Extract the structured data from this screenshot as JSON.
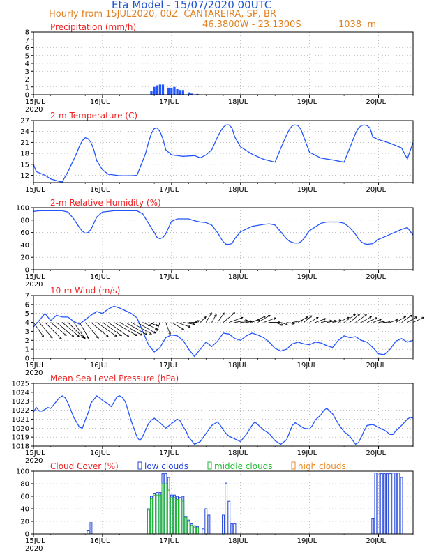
{
  "header": {
    "title": "Eta Model - 15/07/2020 00UTC",
    "subtitle": "Hourly from 15JUL2020, 00Z  CANTAREIRA, SP, BR",
    "coords": "46.3800W - 23.1300S",
    "elevation": "1038  m"
  },
  "colors": {
    "title": "#2255cc",
    "subtitle": "#e08020",
    "panel_title": "#ee2222",
    "series": "#2255ff",
    "low": "#2244dd",
    "middle": "#22bb33",
    "high": "#ee8822",
    "wind": "#000000",
    "axis": "#000000",
    "grid": "#999999"
  },
  "chart_data": [
    {
      "type": "bar",
      "title": "Precipitation (mm/h)",
      "x_unit": "hour since 15JUL2020 00Z",
      "xlim": [
        0,
        132
      ],
      "xticks": [
        0,
        24,
        48,
        72,
        96,
        120
      ],
      "xtick_labels": [
        "15JUL",
        "16JUL",
        "17JUL",
        "18JUL",
        "19JUL",
        "20JUL"
      ],
      "year_label": "2020",
      "ylim": [
        0,
        8
      ],
      "yticks": [
        0,
        1,
        2,
        3,
        4,
        5,
        6,
        7,
        8
      ],
      "grid": true,
      "x": [
        41,
        42,
        43,
        44,
        45,
        47,
        48,
        49,
        50,
        51,
        52,
        54,
        55,
        57
      ],
      "values": [
        0.5,
        1.0,
        1.2,
        1.3,
        1.3,
        0.9,
        0.9,
        1.0,
        0.8,
        0.6,
        0.6,
        0.3,
        0.15,
        0.1
      ]
    },
    {
      "type": "line",
      "title": "2-m Temperature (C)",
      "xlim": [
        0,
        132
      ],
      "xticks": [
        0,
        24,
        48,
        72,
        96,
        120
      ],
      "xtick_labels": [
        "15JUL",
        "16JUL",
        "17JUL",
        "18JUL",
        "19JUL",
        "20JUL"
      ],
      "year_label": "",
      "ylim": [
        10,
        27
      ],
      "yticks": [
        12,
        15,
        18,
        21,
        24,
        27
      ],
      "grid": true,
      "x": [
        0,
        1,
        4,
        6,
        9,
        10,
        12,
        15,
        16,
        17,
        18,
        19,
        20,
        21,
        22,
        24,
        26,
        30,
        34,
        36,
        38,
        39,
        40,
        41,
        42,
        43,
        44,
        45,
        46,
        48,
        52,
        56,
        58,
        60,
        62,
        64,
        65,
        66,
        67,
        68,
        69,
        70,
        72,
        76,
        80,
        84,
        86,
        88,
        89,
        90,
        91,
        92,
        93,
        94,
        96,
        100,
        104,
        108,
        110,
        112,
        113,
        114,
        115,
        116,
        117,
        118,
        120,
        124,
        128,
        130,
        132
      ],
      "values": [
        15,
        13,
        12,
        11,
        10.3,
        10.2,
        13,
        18,
        20,
        21.5,
        22.3,
        22,
        21,
        19,
        16,
        13.5,
        12.3,
        11.9,
        11.9,
        12,
        16,
        18,
        21,
        23.5,
        24.8,
        25,
        24,
        22,
        19,
        17.6,
        17.2,
        17.4,
        16.8,
        17.6,
        19,
        22.5,
        24,
        25.2,
        25.8,
        25.8,
        25,
        22.5,
        19.8,
        17.8,
        16.4,
        15.6,
        19.4,
        23,
        24.6,
        25.6,
        25.8,
        25.6,
        24.6,
        22.5,
        18.3,
        16.7,
        16.2,
        15.6,
        19.5,
        23.5,
        25,
        25.6,
        25.8,
        25.6,
        25,
        22.5,
        21.8,
        20.8,
        19.5,
        16.5,
        21
      ]
    },
    {
      "type": "line",
      "title": "2-m Relative Humidity (%)",
      "xlim": [
        0,
        132
      ],
      "xticks": [
        0,
        24,
        48,
        72,
        96,
        120
      ],
      "xtick_labels": [
        "15JUL",
        "16JUL",
        "17JUL",
        "18JUL",
        "19JUL",
        "20JUL"
      ],
      "year_label": "2020",
      "ylim": [
        0,
        100
      ],
      "yticks": [
        0,
        20,
        40,
        60,
        80,
        100
      ],
      "grid": true,
      "x": [
        0,
        2,
        4,
        6,
        8,
        10,
        12,
        14,
        16,
        17,
        18,
        19,
        20,
        22,
        24,
        28,
        32,
        34,
        36,
        38,
        40,
        42,
        43,
        44,
        45,
        46,
        48,
        50,
        54,
        56,
        58,
        60,
        62,
        64,
        65,
        66,
        67,
        68,
        69,
        70,
        72,
        76,
        80,
        82,
        84,
        86,
        88,
        89,
        90,
        91,
        92,
        93,
        94,
        96,
        100,
        102,
        104,
        106,
        108,
        110,
        112,
        113,
        114,
        115,
        116,
        118,
        120,
        124,
        128,
        130,
        132
      ],
      "values": [
        94,
        95,
        95,
        95,
        95,
        95,
        93,
        82,
        68,
        62,
        59,
        60,
        65,
        85,
        93,
        95,
        95,
        95,
        95,
        90,
        75,
        60,
        52,
        50,
        52,
        58,
        78,
        82,
        82,
        79,
        77,
        76,
        72,
        60,
        52,
        45,
        41,
        41,
        42,
        50,
        61,
        70,
        73,
        74,
        72,
        61,
        50,
        46,
        44,
        43,
        43,
        45,
        50,
        63,
        75,
        77,
        77,
        77,
        75,
        68,
        57,
        50,
        45,
        42,
        41,
        42,
        49,
        57,
        65,
        68,
        56
      ]
    },
    {
      "type": "line",
      "title": "10-m Wind (m/s)",
      "xlim": [
        0,
        132
      ],
      "xticks": [
        0,
        24,
        48,
        72,
        96,
        120
      ],
      "xtick_labels": [
        "15JUL",
        "16JUL",
        "17JUL",
        "18JUL",
        "19JUL",
        "20JUL"
      ],
      "year_label": "2020",
      "ylim": [
        0,
        7
      ],
      "yticks": [
        0,
        1,
        2,
        3,
        4,
        5,
        6,
        7
      ],
      "grid": true,
      "x": [
        0,
        2,
        4,
        6,
        8,
        10,
        12,
        14,
        16,
        18,
        20,
        22,
        24,
        26,
        28,
        30,
        32,
        34,
        36,
        38,
        40,
        42,
        44,
        46,
        48,
        50,
        52,
        54,
        56,
        58,
        60,
        62,
        64,
        66,
        68,
        70,
        72,
        74,
        76,
        78,
        80,
        82,
        84,
        86,
        88,
        90,
        92,
        94,
        96,
        98,
        100,
        102,
        104,
        106,
        108,
        110,
        112,
        114,
        116,
        118,
        120,
        122,
        124,
        126,
        128,
        130,
        132
      ],
      "values": [
        3.5,
        4.2,
        5.0,
        4.2,
        4.8,
        4.6,
        4.6,
        4.1,
        3.8,
        4.3,
        4.8,
        5.2,
        5.0,
        5.5,
        5.8,
        5.6,
        5.3,
        5.0,
        4.5,
        3.0,
        1.5,
        0.7,
        1.2,
        2.3,
        2.6,
        2.5,
        2.0,
        1.0,
        0.2,
        1.0,
        1.8,
        1.3,
        1.9,
        2.8,
        2.7,
        2.2,
        2.0,
        2.5,
        2.8,
        2.6,
        2.3,
        1.8,
        1.1,
        0.8,
        1.0,
        1.6,
        1.8,
        1.6,
        1.5,
        1.8,
        1.7,
        1.4,
        1.2,
        2.0,
        2.5,
        2.3,
        2.4,
        2.0,
        1.8,
        1.2,
        0.5,
        0.4,
        1.0,
        1.9,
        2.2,
        1.8,
        2.0
      ]
    },
    {
      "type": "line",
      "title": "Mean Sea Level Pressure (hPa)",
      "xlim": [
        0,
        132
      ],
      "xticks": [
        0,
        24,
        48,
        72,
        96,
        120
      ],
      "xtick_labels": [
        "15JUL",
        "16JUL",
        "17JUL",
        "18JUL",
        "19JUL",
        "20JUL"
      ],
      "year_label": "2020",
      "ylim": [
        1018,
        1025
      ],
      "yticks": [
        1018,
        1019,
        1020,
        1021,
        1022,
        1023,
        1024,
        1025
      ],
      "grid": true,
      "x": [
        0,
        1,
        2,
        3,
        4,
        5,
        6,
        7,
        8,
        9,
        10,
        11,
        12,
        14,
        16,
        17,
        18,
        19,
        20,
        22,
        23,
        24,
        26,
        27,
        28,
        29,
        30,
        31,
        32,
        34,
        36,
        37,
        38,
        39,
        40,
        41,
        42,
        44,
        46,
        48,
        50,
        51,
        52,
        53,
        54,
        56,
        58,
        60,
        62,
        64,
        65,
        66,
        67,
        68,
        70,
        72,
        73,
        74,
        76,
        77,
        78,
        80,
        82,
        84,
        86,
        88,
        89,
        90,
        91,
        92,
        94,
        96,
        97,
        98,
        100,
        101,
        102,
        104,
        106,
        108,
        110,
        112,
        113,
        114,
        115,
        116,
        118,
        120,
        121,
        122,
        124,
        125,
        126,
        128,
        130,
        131,
        132
      ],
      "values": [
        1021.8,
        1022.3,
        1021.9,
        1021.9,
        1022.1,
        1022.3,
        1022.2,
        1022.6,
        1023.0,
        1023.4,
        1023.6,
        1023.4,
        1022.8,
        1021.2,
        1020.1,
        1020.0,
        1020.9,
        1021.7,
        1022.8,
        1023.6,
        1023.4,
        1023.1,
        1022.7,
        1022.4,
        1022.9,
        1023.5,
        1023.6,
        1023.4,
        1022.9,
        1020.8,
        1019.0,
        1018.6,
        1019.1,
        1019.8,
        1020.5,
        1020.9,
        1021.1,
        1020.6,
        1020.0,
        1020.5,
        1021.0,
        1020.8,
        1020.2,
        1019.7,
        1019.0,
        1018.2,
        1018.5,
        1019.4,
        1020.3,
        1020.7,
        1020.3,
        1019.8,
        1019.4,
        1019.1,
        1018.8,
        1018.5,
        1018.9,
        1019.3,
        1020.3,
        1020.7,
        1020.4,
        1019.8,
        1019.4,
        1018.6,
        1018.2,
        1018.7,
        1019.5,
        1020.3,
        1020.6,
        1020.4,
        1020.0,
        1019.9,
        1020.3,
        1020.9,
        1021.5,
        1022.0,
        1022.2,
        1021.6,
        1020.5,
        1019.6,
        1019.1,
        1018.2,
        1018.4,
        1019.0,
        1019.7,
        1020.3,
        1020.4,
        1020.1,
        1019.9,
        1019.8,
        1019.3,
        1019.3,
        1019.7,
        1020.3,
        1021.0,
        1021.2,
        1021.1
      ]
    },
    {
      "type": "bar",
      "title": "Cloud Cover (%)",
      "xlim": [
        0,
        132
      ],
      "xticks": [
        0,
        24,
        48,
        72,
        96,
        120
      ],
      "xtick_labels": [
        "15JUL",
        "16JUL",
        "17JUL",
        "18JUL",
        "19JUL",
        "20JUL"
      ],
      "year_label": "2020",
      "ylim": [
        0,
        100
      ],
      "yticks": [
        0,
        20,
        40,
        60,
        80,
        100
      ],
      "grid": true,
      "legend": [
        "low clouds",
        "middle clouds",
        "high clouds"
      ],
      "series": [
        {
          "name": "low clouds",
          "x": [
            19,
            20,
            40,
            41,
            42,
            43,
            44,
            45,
            46,
            47,
            48,
            49,
            50,
            51,
            52,
            53,
            54,
            55,
            56,
            57,
            59,
            60,
            61,
            66,
            67,
            68,
            69,
            70,
            118,
            119,
            120,
            121,
            122,
            123,
            124,
            125,
            126,
            127,
            128
          ],
          "values": [
            5,
            18,
            40,
            60,
            64,
            66,
            66,
            96,
            96,
            90,
            62,
            62,
            60,
            58,
            60,
            28,
            22,
            16,
            13,
            12,
            8,
            40,
            30,
            30,
            81,
            52,
            16,
            16,
            25,
            97,
            97,
            96,
            96,
            96,
            96,
            97,
            97,
            97,
            90
          ]
        },
        {
          "name": "middle clouds",
          "x": [
            40,
            41,
            42,
            43,
            44,
            45,
            46,
            47,
            48,
            49,
            50,
            51,
            52,
            53,
            54,
            55,
            56,
            57
          ],
          "values": [
            38,
            56,
            62,
            62,
            62,
            80,
            80,
            70,
            58,
            58,
            55,
            54,
            52,
            26,
            20,
            14,
            11,
            10
          ]
        },
        {
          "name": "high clouds",
          "x": [],
          "values": []
        }
      ]
    }
  ],
  "wind_barbs": {
    "x": [
      0,
      2,
      4,
      6,
      8,
      10,
      12,
      14,
      16,
      18,
      20,
      22,
      24,
      26,
      28,
      30,
      32,
      34,
      36,
      38,
      40,
      42,
      44,
      46,
      48,
      50,
      52,
      54,
      56,
      58,
      60,
      62,
      64,
      66,
      68,
      70,
      72,
      74,
      76,
      78,
      80,
      82,
      84,
      86,
      88,
      90,
      92,
      94,
      96,
      98,
      100,
      102,
      104,
      106,
      108,
      110,
      112,
      114,
      116,
      118,
      120,
      122,
      124,
      126,
      128,
      130,
      132
    ],
    "direction_deg": [
      35,
      40,
      45,
      50,
      50,
      50,
      45,
      35,
      30,
      40,
      50,
      55,
      55,
      55,
      60,
      60,
      60,
      60,
      60,
      65,
      70,
      300,
      340,
      20,
      60,
      70,
      80,
      90,
      110,
      135,
      150,
      150,
      145,
      130,
      110,
      100,
      95,
      100,
      115,
      120,
      110,
      90,
      70,
      70,
      80,
      100,
      120,
      130,
      120,
      110,
      100,
      100,
      105,
      115,
      125,
      130,
      125,
      120,
      115,
      110,
      100,
      95,
      110,
      120,
      125,
      120,
      115
    ]
  }
}
